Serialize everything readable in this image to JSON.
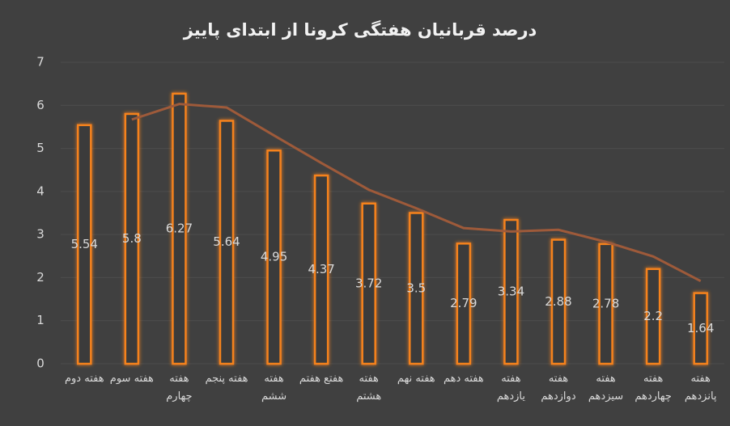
{
  "chart_data": {
    "type": "bar",
    "title": "درصد قربانیان هفتگی کرونا از ابتدای پاییز",
    "categories": [
      "هفته دوم",
      "هفته سوم",
      "هفته چهارم",
      "هفته پنجم",
      "هفته ششم",
      "هفتع هفتم",
      "هفته هشتم",
      "هفته نهم",
      "هفته دهم",
      "هفته یازدهم",
      "هفته دوازدهم",
      "هفته سیزدهم",
      "هفته چهاردهم",
      "هفته پانزدهم"
    ],
    "series": [
      {
        "type": "bar",
        "color": "#f5821f",
        "values": [
          5.54,
          5.8,
          6.27,
          5.64,
          4.95,
          4.37,
          3.72,
          3.5,
          2.79,
          3.34,
          2.88,
          2.78,
          2.2,
          1.64
        ]
      },
      {
        "type": "line",
        "color": "#9e5a3a",
        "values": [
          null,
          5.67,
          6.03,
          5.95,
          5.3,
          4.66,
          4.04,
          3.61,
          3.15,
          3.07,
          3.11,
          2.83,
          2.49,
          1.92
        ]
      }
    ],
    "ylim": [
      0,
      7
    ],
    "yticks": [
      0,
      1,
      2,
      3,
      4,
      5,
      6,
      7
    ],
    "grid": true
  }
}
